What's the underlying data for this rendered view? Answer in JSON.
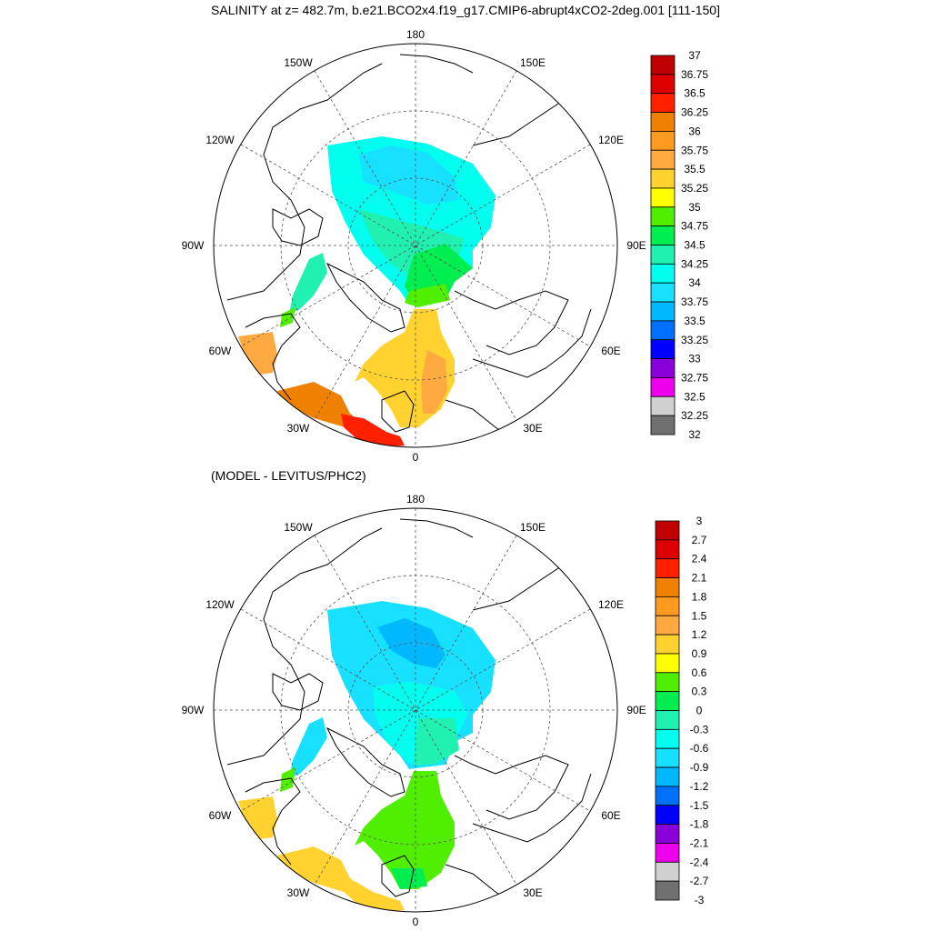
{
  "title": "SALINITY at z= 482.7m, b.e21.BCO2x4.f19_g17.CMIP6-abrupt4xCO2-2deg.001 [111-150]",
  "subtitle": "(MODEL - LEVITUS/PHC2)",
  "lon_labels": [
    "180",
    "150E",
    "120E",
    "90E",
    "60E",
    "30E",
    "0",
    "30W",
    "60W",
    "90W",
    "120W",
    "150W"
  ],
  "colors": {
    "land_line": "#000000",
    "grid": "#555555",
    "c37": "#c00000",
    "c3675": "#dd0000",
    "c365": "#ff2000",
    "c3625": "#f08000",
    "c36": "#ff9a20",
    "c3575": "#ffaa40",
    "c355": "#ffd230",
    "c3525": "#ffff00",
    "c35": "#50ee00",
    "c3475": "#00ee50",
    "c345": "#20f0b0",
    "c3425": "#00ffee",
    "c34": "#18e0ff",
    "c3375": "#00b8ff",
    "c335": "#0070ff",
    "c3325": "#0000ff",
    "c33": "#8a00d8",
    "c3275": "#ee00ee",
    "c325": "#d0d0d0",
    "c3225": "#707070"
  },
  "map1": {
    "colorbar_labels": [
      "37",
      "36.75",
      "36.5",
      "36.25",
      "36",
      "35.75",
      "35.5",
      "35.25",
      "35",
      "34.75",
      "34.5",
      "34.25",
      "34",
      "33.75",
      "33.5",
      "33.25",
      "33",
      "32.75",
      "32.5",
      "32.25",
      "32"
    ],
    "colorbar_colors": [
      "#c00000",
      "#dd0000",
      "#ff2000",
      "#f08000",
      "#ff9a20",
      "#ffaa40",
      "#ffd230",
      "#ffff00",
      "#50ee00",
      "#00ee50",
      "#20f0b0",
      "#00ffee",
      "#18e0ff",
      "#00b8ff",
      "#0070ff",
      "#0000ff",
      "#8a00d8",
      "#ee00ee",
      "#d0d0d0",
      "#707070"
    ]
  },
  "map2": {
    "colorbar_labels": [
      "3",
      "2.7",
      "2.4",
      "2.1",
      "1.8",
      "1.5",
      "1.2",
      "0.9",
      "0.6",
      "0.3",
      "0",
      "-0.3",
      "-0.6",
      "-0.9",
      "-1.2",
      "-1.5",
      "-1.8",
      "-2.1",
      "-2.4",
      "-2.7",
      "-3"
    ],
    "colorbar_colors": [
      "#c00000",
      "#dd0000",
      "#ff2000",
      "#f08000",
      "#ff9a20",
      "#ffaa40",
      "#ffd230",
      "#ffff00",
      "#50ee00",
      "#00ee50",
      "#20f0b0",
      "#00ffee",
      "#18e0ff",
      "#00b8ff",
      "#0070ff",
      "#0000ff",
      "#8a00d8",
      "#ee00ee",
      "#d0d0d0",
      "#707070"
    ]
  }
}
